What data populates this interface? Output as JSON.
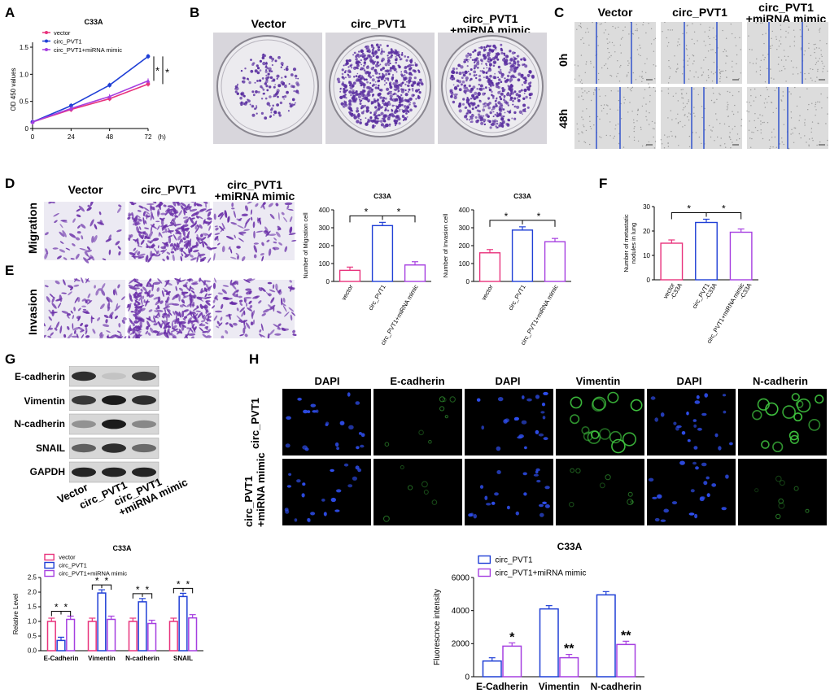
{
  "panels": {
    "A": "A",
    "B": "B",
    "C": "C",
    "D": "D",
    "E": "E",
    "F": "F",
    "G": "G",
    "H": "H"
  },
  "colors": {
    "pink": "#e8327c",
    "blue": "#1f3fd6",
    "purple": "#a63fe0",
    "stain": "#5a2fa0",
    "scratch_line": "#3355cc",
    "fluor_green": "#3fc43f",
    "fluor_blue": "#2f4ff0"
  },
  "panelA": {
    "legend": [
      "vector",
      "circ_PVT1",
      "circ_PVT1+miRNA mimic"
    ],
    "signif": [
      "*",
      "*"
    ]
  },
  "panelB": {
    "columns": [
      "Vector",
      "circ_PVT1",
      "circ_PVT1\n+miRNA mimic"
    ]
  },
  "panelC": {
    "columns": [
      "Vector",
      "circ_PVT1",
      "circ_PVT1\n+miRNA mimic"
    ],
    "rows": [
      "0h",
      "48h"
    ]
  },
  "panelDE": {
    "columns": [
      "Vector",
      "circ_PVT1",
      "circ_PVT1\n+miRNA mimic"
    ],
    "rows": [
      "Migration",
      "Invasion"
    ]
  },
  "panelG": {
    "bands": [
      "E-cadherin",
      "Vimentin",
      "N-cadherin",
      "SNAIL",
      "GAPDH"
    ],
    "lanes": [
      "Vector",
      "circ_PVT1",
      "circ_PVT1\n+miRNA mimic"
    ]
  },
  "panelH": {
    "col_titles": [
      "DAPI",
      "E-cadherin",
      "DAPI",
      "Vimentin",
      "DAPI",
      "N-cadherin"
    ],
    "row_titles": [
      "circ_PVT1",
      "circ_PVT1\n+miRNA mimic"
    ]
  },
  "chart_data": [
    {
      "id": "A",
      "type": "line",
      "title": "C33A",
      "xlabel": "(h)",
      "ylabel": "OD 450 values",
      "x": [
        0,
        24,
        48,
        72
      ],
      "xticks": [
        "0",
        "24",
        "48",
        "72"
      ],
      "ylim": [
        0,
        1.5
      ],
      "yticks": [
        "0",
        "0.5",
        "1.0",
        "1.5"
      ],
      "series": [
        {
          "name": "vector",
          "color": "#e8327c",
          "values": [
            0.12,
            0.35,
            0.55,
            0.82
          ]
        },
        {
          "name": "circ_PVT1",
          "color": "#1f3fd6",
          "values": [
            0.12,
            0.42,
            0.8,
            1.33
          ]
        },
        {
          "name": "circ_PVT1+miRNA mimic",
          "color": "#a63fe0",
          "values": [
            0.12,
            0.37,
            0.59,
            0.88
          ]
        }
      ]
    },
    {
      "id": "D-mig",
      "type": "bar",
      "title": "C33A",
      "ylabel": "Number of Migration cell",
      "categories": [
        "vector",
        "circ_PVT1",
        "circ_PVT1+miRNA mimic"
      ],
      "values": [
        62,
        312,
        92
      ],
      "ylim": [
        0,
        400
      ],
      "yticks": [
        "0",
        "100",
        "200",
        "300",
        "400"
      ],
      "colors": [
        "#e8327c",
        "#1f3fd6",
        "#a63fe0"
      ],
      "signif": [
        "*",
        "*"
      ]
    },
    {
      "id": "D-inv",
      "type": "bar",
      "title": "C33A",
      "ylabel": "Number of Invasion cell",
      "categories": [
        "vector",
        "circ_PVT1",
        "circ_PVT1+miRNA mimic"
      ],
      "values": [
        160,
        287,
        222
      ],
      "ylim": [
        0,
        400
      ],
      "yticks": [
        "0",
        "100",
        "200",
        "300",
        "400"
      ],
      "colors": [
        "#e8327c",
        "#1f3fd6",
        "#a63fe0"
      ],
      "signif": [
        "*",
        "*"
      ]
    },
    {
      "id": "F",
      "type": "bar",
      "ylabel": "Number of metastatic\nnodules in lung",
      "categories": [
        "vector\n-C33A",
        "circ_PVT1\n-C33A",
        "circ_PVT1+miRNA mimic\n-C33A"
      ],
      "values": [
        15,
        23.5,
        19.5
      ],
      "ylim": [
        0,
        30
      ],
      "yticks": [
        "0",
        "10",
        "20",
        "30"
      ],
      "colors": [
        "#e8327c",
        "#1f3fd6",
        "#a63fe0"
      ],
      "signif": [
        "*",
        "*"
      ]
    },
    {
      "id": "G",
      "type": "bar",
      "title": "C33A",
      "ylabel": "Relative Level",
      "categories": [
        "E-Cadherin",
        "Vimentin",
        "N-cadherin",
        "SNAIL"
      ],
      "ylim": [
        0,
        2.5
      ],
      "yticks": [
        "0.0",
        "0.5",
        "1.0",
        "1.5",
        "2.0",
        "2.5"
      ],
      "series": [
        {
          "name": "vector",
          "color": "#e8327c",
          "values": [
            1.0,
            1.0,
            1.0,
            1.0
          ]
        },
        {
          "name": "circ_PVT1",
          "color": "#1f3fd6",
          "values": [
            0.35,
            1.97,
            1.67,
            1.85
          ]
        },
        {
          "name": "circ_PVT1+miRNA mimic",
          "color": "#a63fe0",
          "values": [
            1.07,
            1.07,
            0.93,
            1.12
          ]
        }
      ],
      "signif": [
        "*",
        "*"
      ]
    },
    {
      "id": "H",
      "type": "bar",
      "title": "C33A",
      "ylabel": "Fluorescnce intensity",
      "categories": [
        "E-Cadherin",
        "Vimentin",
        "N-cadherin"
      ],
      "ylim": [
        0,
        6000
      ],
      "yticks": [
        "0",
        "2000",
        "4000",
        "6000"
      ],
      "series": [
        {
          "name": "circ_PVT1",
          "color": "#1f3fd6",
          "values": [
            950,
            4100,
            4950
          ]
        },
        {
          "name": "circ_PVT1+miRNA mimic",
          "color": "#a63fe0",
          "values": [
            1850,
            1150,
            1950
          ]
        }
      ],
      "signif": [
        "*",
        "**",
        "**"
      ]
    }
  ]
}
